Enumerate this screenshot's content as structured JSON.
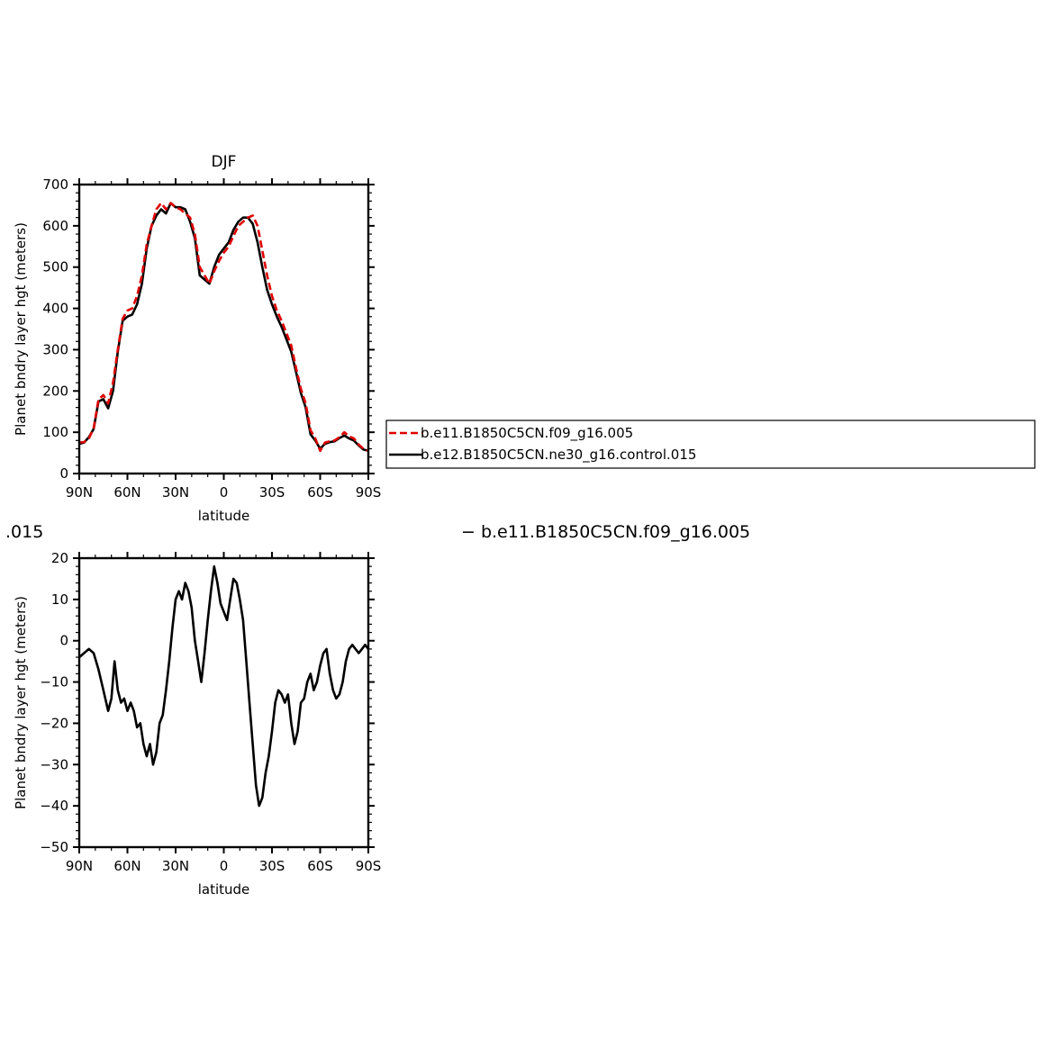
{
  "chart_data": [
    {
      "type": "line",
      "title": "DJF",
      "xlabel": "latitude",
      "ylabel": "Planet bndry layer hgt (meters)",
      "xlim": [
        90,
        -90
      ],
      "ylim": [
        0,
        700
      ],
      "xticks": [
        90,
        60,
        30,
        0,
        -30,
        -60,
        -90
      ],
      "xtick_labels": [
        "90N",
        "60N",
        "30N",
        "0",
        "30S",
        "60S",
        "90S"
      ],
      "yticks": [
        0,
        100,
        200,
        300,
        400,
        500,
        600,
        700
      ],
      "ytick_labels": [
        "0",
        "100",
        "200",
        "300",
        "400",
        "500",
        "600",
        "700"
      ],
      "grid": false,
      "legend_position": "right",
      "series": [
        {
          "name": "b.e11.B1850C5CN.f09_g16.005",
          "color": "#e00000",
          "dash": "dashed",
          "x": [
            90,
            87,
            84,
            81,
            78,
            75,
            72,
            69,
            66,
            63,
            60,
            57,
            54,
            51,
            48,
            45,
            42,
            39,
            36,
            33,
            30,
            27,
            24,
            21,
            18,
            15,
            12,
            9,
            6,
            3,
            0,
            -3,
            -6,
            -9,
            -12,
            -15,
            -18,
            -21,
            -24,
            -27,
            -30,
            -33,
            -36,
            -39,
            -42,
            -45,
            -48,
            -51,
            -54,
            -57,
            -60,
            -63,
            -66,
            -69,
            -72,
            -75,
            -78,
            -81,
            -84,
            -87,
            -90
          ],
          "y": [
            75,
            76,
            85,
            110,
            180,
            190,
            170,
            220,
            300,
            375,
            395,
            400,
            430,
            480,
            555,
            600,
            640,
            655,
            640,
            655,
            645,
            640,
            630,
            620,
            580,
            500,
            480,
            460,
            490,
            515,
            535,
            550,
            575,
            600,
            610,
            620,
            625,
            600,
            540,
            480,
            430,
            395,
            370,
            340,
            310,
            255,
            205,
            170,
            105,
            85,
            55,
            75,
            78,
            80,
            88,
            100,
            90,
            85,
            70,
            60,
            55
          ]
        },
        {
          "name": "b.e12.B1850C5CN.ne30_g16.control.015",
          "color": "#000000",
          "dash": "solid",
          "x": [
            90,
            87,
            84,
            81,
            78,
            75,
            72,
            69,
            66,
            63,
            60,
            57,
            54,
            51,
            48,
            45,
            42,
            39,
            36,
            33,
            30,
            27,
            24,
            21,
            18,
            15,
            12,
            9,
            6,
            3,
            0,
            -3,
            -6,
            -9,
            -12,
            -15,
            -18,
            -21,
            -24,
            -27,
            -30,
            -33,
            -36,
            -39,
            -42,
            -45,
            -48,
            -51,
            -54,
            -57,
            -60,
            -63,
            -66,
            -69,
            -72,
            -75,
            -78,
            -81,
            -84,
            -87,
            -90
          ],
          "y": [
            72,
            75,
            88,
            108,
            175,
            180,
            158,
            200,
            295,
            370,
            380,
            385,
            410,
            460,
            545,
            600,
            625,
            640,
            630,
            655,
            645,
            645,
            640,
            610,
            570,
            480,
            470,
            460,
            500,
            530,
            545,
            560,
            590,
            610,
            620,
            620,
            605,
            560,
            500,
            445,
            410,
            380,
            355,
            325,
            295,
            245,
            195,
            160,
            95,
            80,
            60,
            72,
            76,
            78,
            86,
            92,
            85,
            80,
            68,
            58,
            55
          ]
        }
      ]
    },
    {
      "type": "line",
      "title": "",
      "xlabel": "latitude",
      "ylabel": "Planet bndry layer hgt (meters)",
      "xlim": [
        90,
        -90
      ],
      "ylim": [
        -50,
        20
      ],
      "xticks": [
        90,
        60,
        30,
        0,
        -30,
        -60,
        -90
      ],
      "xtick_labels": [
        "90N",
        "60N",
        "30N",
        "0",
        "30S",
        "60S",
        "90S"
      ],
      "yticks": [
        -50,
        -40,
        -30,
        -20,
        -10,
        0,
        10,
        20
      ],
      "ytick_labels": [
        "−50",
        "−40",
        "−30",
        "−20",
        "−10",
        "0",
        "10",
        "20"
      ],
      "grid": false,
      "header_left": ".015",
      "header_right": "− b.e11.B1850C5CN.f09_g16.005",
      "series": [
        {
          "color": "#000000",
          "dash": "solid",
          "x": [
            90,
            87,
            84,
            81,
            78,
            75,
            72,
            70,
            68,
            66,
            64,
            62,
            60,
            58,
            56,
            54,
            52,
            50,
            48,
            46,
            44,
            42,
            40,
            38,
            36,
            34,
            32,
            30,
            28,
            26,
            24,
            22,
            20,
            18,
            16,
            14,
            12,
            10,
            8,
            6,
            4,
            2,
            0,
            -2,
            -4,
            -6,
            -8,
            -10,
            -12,
            -14,
            -16,
            -18,
            -20,
            -22,
            -24,
            -26,
            -28,
            -30,
            -32,
            -34,
            -36,
            -38,
            -40,
            -42,
            -44,
            -46,
            -48,
            -50,
            -52,
            -54,
            -56,
            -58,
            -60,
            -62,
            -64,
            -66,
            -68,
            -70,
            -72,
            -74,
            -76,
            -78,
            -80,
            -82,
            -84,
            -86,
            -88,
            -90
          ],
          "y": [
            -4,
            -3,
            -2,
            -3,
            -7,
            -12,
            -17,
            -14,
            -5,
            -12,
            -15,
            -14,
            -17,
            -15,
            -17,
            -21,
            -20,
            -25,
            -28,
            -25,
            -30,
            -27,
            -20,
            -18,
            -12,
            -5,
            3,
            10,
            12,
            10,
            14,
            12,
            8,
            0,
            -5,
            -10,
            -3,
            5,
            12,
            18,
            14,
            9,
            7,
            5,
            10,
            15,
            14,
            10,
            5,
            -5,
            -15,
            -25,
            -35,
            -40,
            -38,
            -32,
            -28,
            -22,
            -15,
            -12,
            -13,
            -15,
            -13,
            -20,
            -25,
            -22,
            -15,
            -14,
            -10,
            -8,
            -12,
            -10,
            -6,
            -3,
            -2,
            -8,
            -12,
            -14,
            -13,
            -10,
            -5,
            -2,
            -1,
            -2,
            -3,
            -2,
            -1,
            -2
          ]
        }
      ]
    }
  ]
}
